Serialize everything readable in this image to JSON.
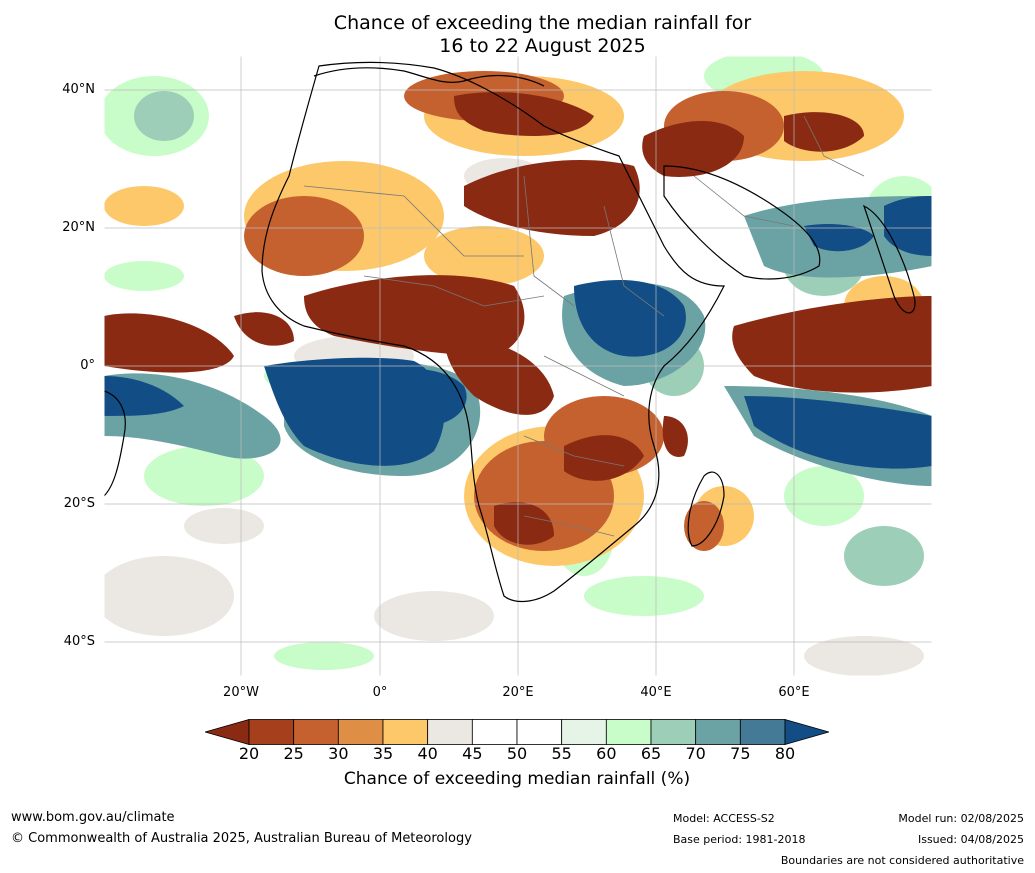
{
  "title": {
    "line1": "Chance of exceeding the median rainfall for",
    "line2": "16 to 22 August 2025"
  },
  "axes": {
    "lat_labels": [
      "40°N",
      "20°N",
      "0°",
      "20°S",
      "40°S"
    ],
    "lon_labels": [
      "20°W",
      "0°",
      "20°E",
      "40°E",
      "60°E"
    ]
  },
  "colorbar": {
    "ticks": [
      "20",
      "25",
      "30",
      "35",
      "40",
      "45",
      "50",
      "55",
      "60",
      "65",
      "70",
      "75",
      "80"
    ],
    "colors": [
      "#8b2a12",
      "#a63f1c",
      "#c5612f",
      "#de8f45",
      "#fdc86a",
      "#ebe8e3",
      "#ffffff",
      "#ffffff",
      "#e6f4e8",
      "#c8fcc8",
      "#9dcfb8",
      "#6ba3a5",
      "#457a96",
      "#124d86"
    ],
    "label": "Chance of exceeding median rainfall (%)"
  },
  "footer": {
    "website": "www.bom.gov.au/climate",
    "copyright": "© Commonwealth of Australia 2025, Australian Bureau of Meteorology",
    "model": "Model: ACCESS-S2",
    "base_period": "Base period: 1981-2018",
    "model_run": "Model run: 02/08/2025",
    "issued": "Issued: 04/08/2025",
    "boundaries_note": "Boundaries are not considered authoritative"
  },
  "map_colors": {
    "ocean_bg": "#ffffff",
    "very_dry": "#8b2a12",
    "dry": "#c5612f",
    "slightly_dry": "#fdc86a",
    "neutral": "#ebe8e3",
    "slightly_wet": "#c8fcc8",
    "wet": "#6ba3a5",
    "very_wet": "#124d86",
    "coastline": "#000000",
    "borders": "#777777"
  }
}
